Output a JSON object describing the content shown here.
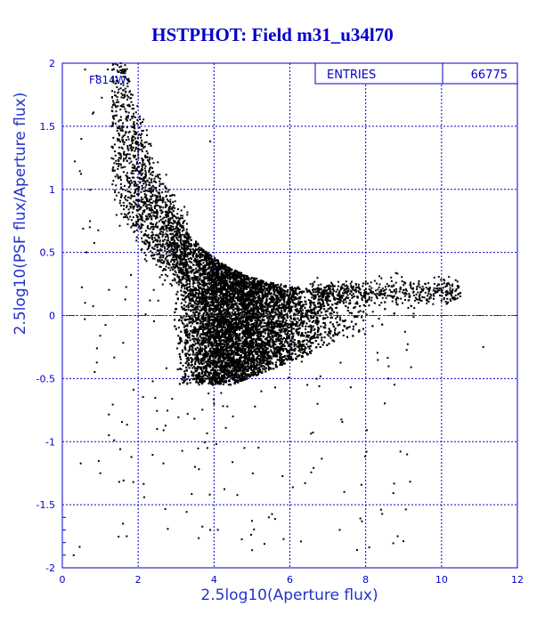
{
  "chart_data": {
    "type": "scatter",
    "title": "HSTPHOT: Field m31_u34l70",
    "xlabel": "2.5log10(Aperture flux)",
    "ylabel": "2.5log10(PSF flux/Aperture flux)",
    "xlim": [
      0,
      12
    ],
    "ylim": [
      -2,
      2
    ],
    "xticks": [
      "0",
      "2",
      "4",
      "6",
      "8",
      "10",
      "12"
    ],
    "yticks": [
      "-2",
      "-1.5",
      "-1",
      "-0.5",
      "0",
      "0.5",
      "1",
      "1.5",
      "2"
    ],
    "grid": true,
    "reference_line_y": 0,
    "stats": {
      "label": "ENTRIES",
      "value": "66775"
    },
    "annotation": "F814W",
    "points_note": "dense cloud of 66775 points; most between x 3-8, y -0.6 to 0.6, upper envelope rising steeply toward x 1.5-2.5 (y up to 2), tail toward x 10.5 near y 0.2",
    "series": [
      {
        "points": [
          [
            0.6,
            1.95
          ],
          [
            0.9,
            1.9
          ],
          [
            1.2,
            1.95
          ],
          [
            0.5,
            1.4
          ],
          [
            0.8,
            1.6
          ],
          [
            1.3,
            1.5
          ],
          [
            1.5,
            1.25
          ],
          [
            1.7,
            1.1
          ],
          [
            2.0,
            1.3
          ],
          [
            2.2,
            1.05
          ],
          [
            2.5,
            0.9
          ],
          [
            2.8,
            0.75
          ],
          [
            3.0,
            0.65
          ],
          [
            3.2,
            0.55
          ],
          [
            3.5,
            0.45
          ],
          [
            3.8,
            0.4
          ],
          [
            4.2,
            0.35
          ],
          [
            4.6,
            0.3
          ],
          [
            5.0,
            0.3
          ],
          [
            5.5,
            0.25
          ],
          [
            6.0,
            0.22
          ],
          [
            6.5,
            0.2
          ],
          [
            7.0,
            0.18
          ],
          [
            7.5,
            0.18
          ],
          [
            8.0,
            0.17
          ],
          [
            8.5,
            0.2
          ],
          [
            9.0,
            0.2
          ],
          [
            9.5,
            0.2
          ],
          [
            10.0,
            0.2
          ],
          [
            10.5,
            0.18
          ],
          [
            4.0,
            -0.3
          ],
          [
            4.5,
            -0.4
          ],
          [
            5.0,
            -0.35
          ],
          [
            5.5,
            -0.25
          ],
          [
            6.0,
            -0.15
          ],
          [
            3.5,
            -0.5
          ],
          [
            4.0,
            -0.7
          ],
          [
            4.5,
            -0.8
          ],
          [
            2.5,
            -0.9
          ],
          [
            1.0,
            -1.25
          ],
          [
            1.6,
            -1.65
          ],
          [
            3.5,
            -1.2
          ],
          [
            4.8,
            -1.05
          ],
          [
            8.6,
            -0.5
          ],
          [
            11.1,
            -0.25
          ],
          [
            0.3,
            -1.9
          ],
          [
            1.7,
            -1.75
          ],
          [
            3.9,
            -1.7
          ],
          [
            3.9,
            1.38
          ],
          [
            0.6,
            0.1
          ]
        ]
      }
    ]
  }
}
